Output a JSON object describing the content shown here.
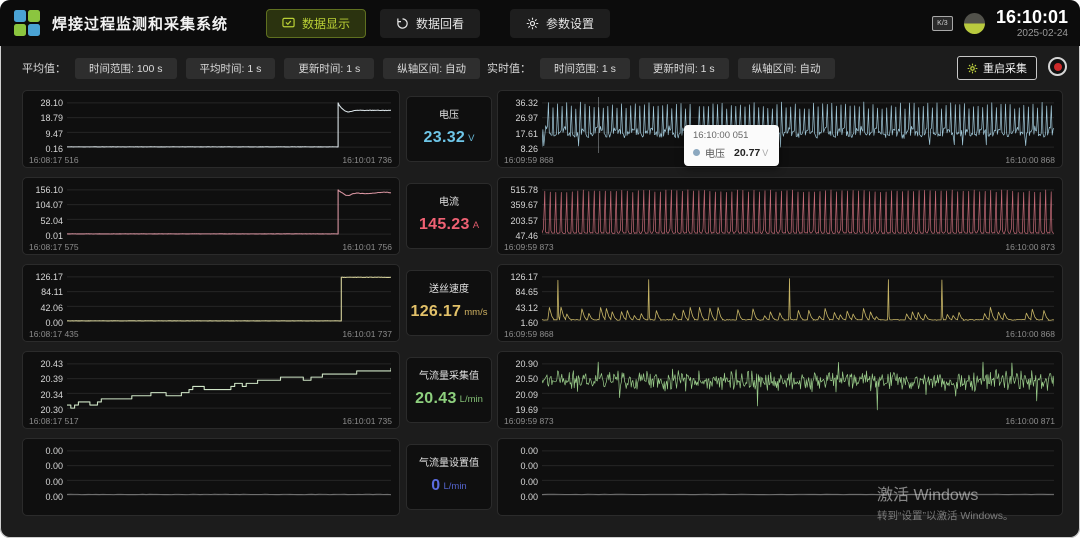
{
  "header": {
    "title": "焊接过程监测和采集系统",
    "nav": [
      {
        "label": "数据显示",
        "icon": "monitor-check-icon",
        "active": true
      },
      {
        "label": "数据回看",
        "icon": "history-icon",
        "active": false
      },
      {
        "label": "参数设置",
        "icon": "gear-icon",
        "active": false
      }
    ],
    "ime_badge": "K/3",
    "clock": {
      "time": "16:10:01",
      "date": "2025-02-24"
    }
  },
  "toolbar": {
    "avg": {
      "label": "平均值：",
      "buttons": [
        "时间范围: 100 s",
        "平均时间: 1 s",
        "更新时间: 1 s",
        "纵轴区间: 自动"
      ]
    },
    "realtime": {
      "label": "实时值：",
      "buttons": [
        "时间范围: 1 s",
        "更新时间: 1 s",
        "纵轴区间: 自动"
      ]
    },
    "restart_label": "重启采集"
  },
  "metrics": [
    {
      "title": "电压",
      "value": "23.32",
      "unit": "V",
      "color": "#6ec6e8"
    },
    {
      "title": "电流",
      "value": "145.23",
      "unit": "A",
      "color": "#ef6173"
    },
    {
      "title": "送丝速度",
      "value": "126.17",
      "unit": "mm/s",
      "color": "#e2c169"
    },
    {
      "title": "气流量采集值",
      "value": "20.43",
      "unit": "L/min",
      "color": "#8ed07e"
    },
    {
      "title": "气流量设置值",
      "value": "0",
      "unit": "L/min",
      "color": "#5b6ce0"
    }
  ],
  "chart_data": [
    {
      "id": "avg-voltage",
      "type": "line",
      "panel": "left",
      "color": "#d9e2e6",
      "pattern": "flat-jump",
      "jump_at": 0.835,
      "settle": 0.83,
      "peak": 1.0,
      "dip": 0.05,
      "wobble": 0,
      "seed": 11,
      "y_ticks": [
        "28.10",
        "18.79",
        "9.47",
        "0.16"
      ],
      "x_start": "16:08:17 516",
      "x_end": "16:10:01 736"
    },
    {
      "id": "avg-current",
      "type": "line",
      "panel": "left",
      "color": "#d794a0",
      "pattern": "flat-jump",
      "jump_at": 0.835,
      "settle": 0.93,
      "peak": 1.0,
      "dip": 0.08,
      "wobble": 1,
      "seed": 22,
      "y_ticks": [
        "156.10",
        "104.07",
        "52.04",
        "0.01"
      ],
      "x_start": "16:08:17 575",
      "x_end": "16:10:01 756"
    },
    {
      "id": "avg-wire-speed",
      "type": "line",
      "panel": "left",
      "color": "#d6d29b",
      "pattern": "flat-jump",
      "jump_at": 0.845,
      "settle": 0.99,
      "peak": 0.99,
      "dip": 0,
      "wobble": 0,
      "seed": 33,
      "y_ticks": [
        "126.17",
        "84.11",
        "42.06",
        "0.00"
      ],
      "x_start": "16:08:17 435",
      "x_end": "16:10:01 737"
    },
    {
      "id": "avg-gas-flow",
      "type": "line",
      "panel": "left",
      "color": "#cfe5c6",
      "pattern": "steps-rising",
      "seed": 44,
      "y_ticks": [
        "20.43",
        "20.39",
        "20.34",
        "20.30"
      ],
      "x_start": "16:08:17 517",
      "x_end": "16:10:01 735"
    },
    {
      "id": "avg-gas-set",
      "type": "line",
      "panel": "left",
      "color": "#6f6f6f",
      "pattern": "flat-zero",
      "seed": 55,
      "y_ticks": [
        "0.00",
        "0.00",
        "0.00",
        "0.00"
      ],
      "x_start": null,
      "x_end": null
    },
    {
      "id": "rt-voltage",
      "type": "line",
      "panel": "right",
      "color": "#a3cbdc",
      "pattern": "spiky-band",
      "seed": 66,
      "overlay": "tooltip",
      "y_ticks": [
        "36.32",
        "26.97",
        "17.61",
        "8.26"
      ],
      "x_start": "16:09:59 868",
      "x_end": "16:10:00 868"
    },
    {
      "id": "rt-current",
      "type": "line",
      "panel": "right",
      "color": "#c56b78",
      "pattern": "comb",
      "seed": 77,
      "y_ticks": [
        "515.78",
        "359.67",
        "203.57",
        "47.46"
      ],
      "x_start": "16:09:59 873",
      "x_end": "16:10:00 873"
    },
    {
      "id": "rt-wire-speed",
      "type": "line",
      "panel": "right",
      "color": "#c7b566",
      "pattern": "sparse-spikes",
      "seed": 88,
      "y_ticks": [
        "126.17",
        "84.65",
        "43.12",
        "1.60"
      ],
      "x_start": "16:09:59 868",
      "x_end": "16:10:00 868"
    },
    {
      "id": "rt-gas-flow",
      "type": "line",
      "panel": "right",
      "color": "#9ccf8c",
      "pattern": "noise-band",
      "seed": 99,
      "y_ticks": [
        "20.90",
        "20.50",
        "20.09",
        "19.69"
      ],
      "x_start": "16:09:59 873",
      "x_end": "16:10:00 871"
    },
    {
      "id": "rt-gas-set",
      "type": "line",
      "panel": "right",
      "color": "#6f6f6f",
      "pattern": "flat-zero",
      "seed": 110,
      "y_ticks": [
        "0.00",
        "0.00",
        "0.00",
        "0.00"
      ],
      "x_start": null,
      "x_end": null
    }
  ],
  "tooltip": {
    "time": "16:10:00 051",
    "series": "电压",
    "value": "20.77",
    "unit": "V"
  },
  "watermark": {
    "line1": "激活 Windows",
    "line2": "转到“设置”以激活 Windows。"
  }
}
